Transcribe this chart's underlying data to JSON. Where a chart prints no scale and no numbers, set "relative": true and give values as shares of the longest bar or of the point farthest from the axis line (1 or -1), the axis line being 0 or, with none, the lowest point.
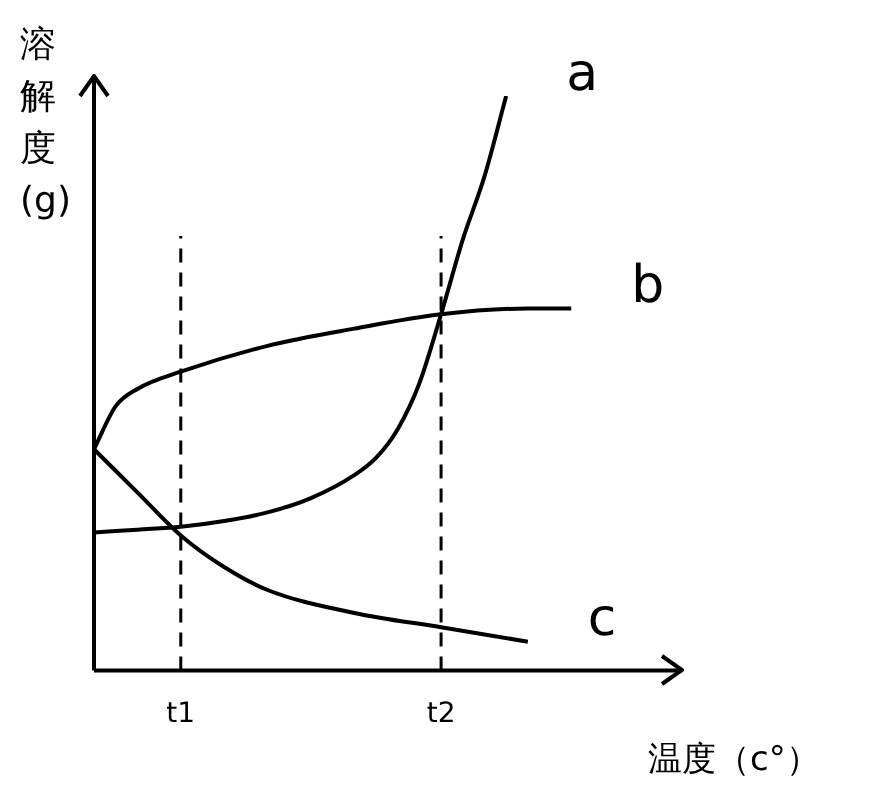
{
  "chart_data": {
    "type": "line",
    "relative": true,
    "xlabel": "温度（c°）",
    "ylabel": "溶解度(g)",
    "categories": [
      null,
      null,
      null,
      null,
      "t1",
      null,
      null,
      null,
      null,
      null,
      null,
      null,
      null,
      null,
      null,
      null,
      "t2",
      null,
      null,
      null,
      null,
      null,
      null,
      null,
      null,
      null,
      null
    ],
    "series": [
      {
        "name": "a",
        "color": "#000000",
        "values": [
          0.24,
          null,
          0.245,
          null,
          0.25,
          null,
          0.26,
          null,
          0.275,
          null,
          0.3,
          null,
          0.34,
          0.37,
          0.42,
          0.5,
          0.62,
          0.75,
          0.86,
          1,
          null,
          null,
          null,
          null,
          null,
          null,
          null
        ]
      },
      {
        "name": "b",
        "color": "#000000",
        "values": [
          0.385,
          0.46,
          0.49,
          null,
          0.52,
          null,
          null,
          null,
          0.565,
          null,
          null,
          null,
          0.595,
          null,
          null,
          null,
          0.62,
          null,
          null,
          null,
          0.63,
          null,
          0.63,
          null,
          null,
          null,
          null
        ]
      },
      {
        "name": "c",
        "color": "#000000",
        "values": [
          0.385,
          null,
          0.31,
          null,
          0.235,
          null,
          0.18,
          null,
          0.14,
          null,
          null,
          null,
          0.1,
          null,
          null,
          null,
          0.075,
          null,
          null,
          null,
          0.05,
          null,
          null,
          null,
          null,
          null,
          null
        ]
      }
    ],
    "ref_lines": [
      {
        "axis": "x",
        "value": "t1",
        "line_style": "dashed"
      },
      {
        "axis": "x",
        "value": "t2",
        "line_style": "dashed"
      }
    ],
    "grid": false,
    "legend": false,
    "marker": "none",
    "line_style": "solid"
  }
}
